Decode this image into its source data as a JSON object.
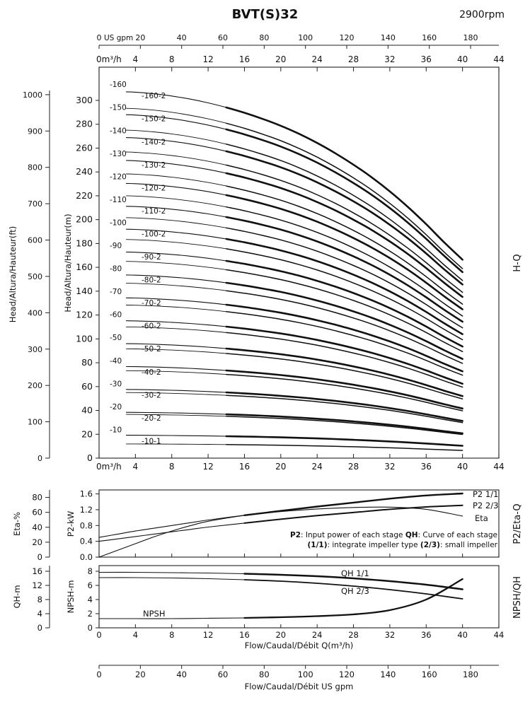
{
  "header": {
    "title": "BVT(S)32",
    "rpm": "2900rpm"
  },
  "right_labels": {
    "hq": "H-Q",
    "p2": "P2/Eta-Q",
    "npsh": "NPSH/QH"
  },
  "note": {
    "line1": [
      [
        "b",
        "P2"
      ],
      [
        "t",
        ": Input power of each stage "
      ],
      [
        "b",
        "QH"
      ],
      [
        "t",
        ": Curve of each stage"
      ]
    ],
    "line2": [
      [
        "b",
        "(1/1)"
      ],
      [
        "t",
        ": integrate impeller type "
      ],
      [
        "b",
        "(2/3)"
      ],
      [
        "t",
        ": small impeller"
      ]
    ]
  },
  "chart_data": [
    {
      "id": "hq",
      "type": "line",
      "title": "H-Q",
      "x_axis_m3h": {
        "label": "m³/h",
        "zero_label": "0m³/h",
        "ticks": [
          0,
          4,
          8,
          12,
          16,
          20,
          24,
          28,
          32,
          36,
          40,
          44
        ],
        "max": 44
      },
      "x_axis_gpm": {
        "label": "US gpm",
        "ticks": [
          0,
          20,
          40,
          60,
          80,
          100,
          120,
          140,
          160,
          180
        ],
        "max": 193.7
      },
      "y_axis_m": {
        "label": "Head/Altura/Hauteur(m)",
        "ticks": [
          0,
          20,
          40,
          60,
          80,
          100,
          120,
          140,
          160,
          180,
          200,
          220,
          240,
          260,
          280,
          300
        ],
        "max": 300
      },
      "y_axis_ft": {
        "label": "Head/Altura/Hauteur(ft)",
        "ticks": [
          0,
          100,
          200,
          300,
          400,
          500,
          600,
          700,
          800,
          900,
          1000
        ],
        "max": 1000
      },
      "q": [
        3,
        4,
        6,
        8,
        10,
        12,
        14,
        16,
        18,
        20,
        22,
        24,
        26,
        28,
        30,
        32,
        34,
        36,
        38,
        40
      ],
      "head_per_stage_full": [
        1.92,
        1.918,
        1.91,
        1.898,
        1.882,
        1.862,
        1.838,
        1.81,
        1.778,
        1.742,
        1.7,
        1.652,
        1.598,
        1.538,
        1.472,
        1.398,
        1.316,
        1.226,
        1.13,
        1.04
      ],
      "shutoff_per_stage": 1.93,
      "stages": [
        {
          "n": 160,
          "label": "-160",
          "label2": "-160-2",
          "sf": 0.955
        },
        {
          "n": 150,
          "label": "-150",
          "label2": "-150-2",
          "sf": 0.955
        },
        {
          "n": 140,
          "label": "-140",
          "label2": "-140-2",
          "sf": 0.955
        },
        {
          "n": 130,
          "label": "-130",
          "label2": "-130-2",
          "sf": 0.955
        },
        {
          "n": 120,
          "label": "-120",
          "label2": "-120-2",
          "sf": 0.955
        },
        {
          "n": 110,
          "label": "-110",
          "label2": "-110-2",
          "sf": 0.955
        },
        {
          "n": 100,
          "label": "-100",
          "label2": "-100-2",
          "sf": 0.955
        },
        {
          "n": 90,
          "label": "-90",
          "label2": "-90-2",
          "sf": 0.955
        },
        {
          "n": 80,
          "label": "-80",
          "label2": "-80-2",
          "sf": 0.955
        },
        {
          "n": 70,
          "label": "-70",
          "label2": "-70-2",
          "sf": 0.955
        },
        {
          "n": 60,
          "label": "-60",
          "label2": "-60-2",
          "sf": 0.955
        },
        {
          "n": 50,
          "label": "-50",
          "label2": "-50-2",
          "sf": 0.955
        },
        {
          "n": 40,
          "label": "-40",
          "label2": "-40-2",
          "sf": 0.955
        },
        {
          "n": 30,
          "label": "-30",
          "label2": "-30-2",
          "sf": 0.955
        },
        {
          "n": 20,
          "label": "-20",
          "label2": "-20-2",
          "sf": 0.955
        },
        {
          "n": 10,
          "label": "-10",
          "label2": "-10-1",
          "sf": 0.62
        }
      ]
    },
    {
      "id": "p2eta",
      "type": "line",
      "title": "P2/Eta-Q",
      "y_axis_eta": {
        "label": "Eta-%",
        "ticks": [
          0,
          20,
          40,
          60,
          80
        ],
        "max": 90
      },
      "y_axis_p2": {
        "label": "P2-kW",
        "ticks": [
          0,
          0.4,
          0.8,
          1.2,
          1.6
        ],
        "max": 1.7
      },
      "x": [
        0,
        2,
        4,
        6,
        8,
        10,
        12,
        16,
        20,
        24,
        28,
        32,
        36,
        40
      ],
      "series": [
        {
          "name": "P2 1/1",
          "axis": "p2",
          "values": [
            0.5,
            0.58,
            0.66,
            0.73,
            0.8,
            0.87,
            0.94,
            1.06,
            1.17,
            1.28,
            1.38,
            1.48,
            1.56,
            1.61
          ]
        },
        {
          "name": "P2 2/3",
          "axis": "p2",
          "values": [
            0.4,
            0.46,
            0.52,
            0.58,
            0.64,
            0.7,
            0.76,
            0.86,
            0.96,
            1.05,
            1.13,
            1.21,
            1.27,
            1.31
          ]
        },
        {
          "name": "Eta",
          "axis": "eta",
          "values": [
            0,
            9,
            18,
            27,
            35,
            42,
            48,
            56,
            61,
            64.5,
            66.5,
            67,
            64,
            55
          ]
        }
      ]
    },
    {
      "id": "npshqh",
      "type": "line",
      "title": "NPSH/QH",
      "y_axis_qh": {
        "label": "QH-m",
        "ticks": [
          0,
          4,
          8,
          12,
          16
        ],
        "max": 17.6
      },
      "y_axis_npsh": {
        "label": "NPSH-m",
        "ticks": [
          0,
          2,
          4,
          6,
          8
        ],
        "max": 8.8
      },
      "x_axis_m3h": {
        "label": "Flow/Caudal/Débit Q(m³/h)",
        "ticks": [
          0,
          4,
          8,
          12,
          16,
          20,
          24,
          28,
          32,
          36,
          40,
          44
        ]
      },
      "x_axis_gpm": {
        "label": "Flow/Caudal/Débit  US gpm",
        "ticks": [
          0,
          20,
          40,
          60,
          80,
          100,
          120,
          140,
          160,
          180
        ]
      },
      "x": [
        0,
        4,
        8,
        12,
        16,
        20,
        24,
        28,
        32,
        36,
        40
      ],
      "series": [
        {
          "name": "QH 1/1",
          "axis": "qh",
          "values": [
            15.7,
            15.7,
            15.6,
            15.5,
            15.3,
            15.0,
            14.6,
            14.0,
            13.2,
            12.2,
            10.9
          ]
        },
        {
          "name": "QH 2/3",
          "axis": "qh",
          "values": [
            14.2,
            14.2,
            14.1,
            13.9,
            13.6,
            13.2,
            12.6,
            11.8,
            10.8,
            9.6,
            8.2
          ]
        },
        {
          "name": "NPSH",
          "axis": "npsh",
          "values": [
            1.3,
            1.3,
            1.3,
            1.35,
            1.4,
            1.5,
            1.65,
            1.9,
            2.5,
            4.0,
            6.9
          ]
        }
      ]
    }
  ]
}
